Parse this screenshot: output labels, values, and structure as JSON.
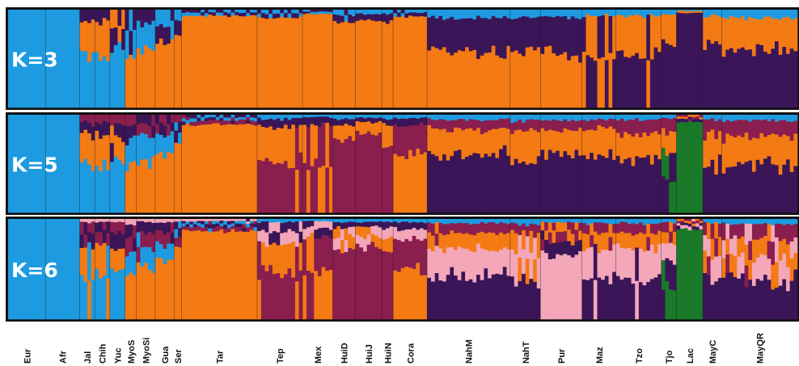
{
  "chart_data": {
    "type": "admixture-structure-bar",
    "populations": [
      {
        "label": "Eur",
        "cols": 10
      },
      {
        "label": "Afr",
        "cols": 9
      },
      {
        "label": "Jal",
        "cols": 4
      },
      {
        "label": "Chih",
        "cols": 4
      },
      {
        "label": "Yuc",
        "cols": 4
      },
      {
        "label": "MyoS",
        "cols": 3
      },
      {
        "label": "MyoSi",
        "cols": 5
      },
      {
        "label": "Gua",
        "cols": 5
      },
      {
        "label": "Ser",
        "cols": 2
      },
      {
        "label": "Tar",
        "cols": 20
      },
      {
        "label": "Tep",
        "cols": 12
      },
      {
        "label": "Mex",
        "cols": 8
      },
      {
        "label": "HuiD",
        "cols": 6
      },
      {
        "label": "HuiJ",
        "cols": 7
      },
      {
        "label": "HuiN",
        "cols": 3
      },
      {
        "label": "Cora",
        "cols": 9
      },
      {
        "label": "NahM",
        "cols": 22
      },
      {
        "label": "NahT",
        "cols": 8
      },
      {
        "label": "Pur",
        "cols": 11
      },
      {
        "label": "Maz",
        "cols": 9
      },
      {
        "label": "Tzo",
        "cols": 12
      },
      {
        "label": "Tjo",
        "cols": 4
      },
      {
        "label": "Lac",
        "cols": 7
      },
      {
        "label": "MayC",
        "cols": 5
      },
      {
        "label": "MayQR",
        "cols": 20
      }
    ],
    "panels": [
      {
        "label": "K=3",
        "colors": [
          "#1e9be0",
          "#f47a14",
          "#3a1557"
        ],
        "proportions": [
          [
            1,
            0,
            0
          ],
          [
            1,
            0,
            0
          ],
          [
            0.55,
            0.33,
            0.12
          ],
          [
            0.5,
            0.38,
            0.12
          ],
          [
            0.6,
            0.2,
            0.2
          ],
          [
            0.25,
            0.55,
            0.2
          ],
          [
            0.25,
            0.6,
            0.15
          ],
          [
            0.18,
            0.67,
            0.15
          ],
          [
            0.1,
            0.75,
            0.15
          ],
          [
            0.03,
            0.94,
            0.03
          ],
          [
            0.04,
            0.92,
            0.04
          ],
          [
            0.02,
            0.96,
            0.02
          ],
          [
            0.05,
            0.88,
            0.07
          ],
          [
            0.04,
            0.9,
            0.06
          ],
          [
            0.04,
            0.88,
            0.08
          ],
          [
            0.03,
            0.93,
            0.04
          ],
          [
            0.08,
            0.58,
            0.34
          ],
          [
            0.08,
            0.6,
            0.32
          ],
          [
            0.07,
            0.53,
            0.4
          ],
          [
            0.06,
            0.5,
            0.44
          ],
          [
            0.06,
            0.4,
            0.54
          ],
          [
            0.05,
            0.28,
            0.67
          ],
          [
            0.01,
            0.02,
            0.97
          ],
          [
            0.06,
            0.3,
            0.64
          ],
          [
            0.08,
            0.32,
            0.6
          ]
        ]
      },
      {
        "label": "K=5",
        "colors": [
          "#1e9be0",
          "#f47a14",
          "#3a1557",
          "#8a1e4e",
          "#1a7a2a"
        ],
        "proportions": [
          [
            1,
            0,
            0,
            0,
            0
          ],
          [
            1,
            0,
            0,
            0,
            0
          ],
          [
            0.5,
            0.3,
            0.12,
            0.08,
            0
          ],
          [
            0.45,
            0.35,
            0.12,
            0.08,
            0
          ],
          [
            0.55,
            0.2,
            0.15,
            0.1,
            0
          ],
          [
            0.25,
            0.5,
            0.15,
            0.1,
            0
          ],
          [
            0.25,
            0.55,
            0.1,
            0.1,
            0
          ],
          [
            0.18,
            0.62,
            0.1,
            0.1,
            0
          ],
          [
            0.1,
            0.72,
            0.1,
            0.08,
            0
          ],
          [
            0.03,
            0.9,
            0.03,
            0.04,
            0
          ],
          [
            0.04,
            0.38,
            0.08,
            0.5,
            0
          ],
          [
            0.02,
            0.45,
            0.08,
            0.45,
            0
          ],
          [
            0.04,
            0.15,
            0.06,
            0.75,
            0
          ],
          [
            0.03,
            0.12,
            0.05,
            0.8,
            0
          ],
          [
            0.04,
            0.2,
            0.06,
            0.7,
            0
          ],
          [
            0.03,
            0.6,
            0.07,
            0.3,
            0
          ],
          [
            0.05,
            0.25,
            0.6,
            0.1,
            0
          ],
          [
            0.06,
            0.3,
            0.54,
            0.1,
            0
          ],
          [
            0.05,
            0.25,
            0.6,
            0.1,
            0
          ],
          [
            0.05,
            0.28,
            0.57,
            0.1,
            0
          ],
          [
            0.05,
            0.25,
            0.55,
            0.15,
            0
          ],
          [
            0.04,
            0.18,
            0.35,
            0.13,
            0.3
          ],
          [
            0,
            0.02,
            0.03,
            0.02,
            0.93
          ],
          [
            0.05,
            0.3,
            0.5,
            0.15,
            0
          ],
          [
            0.06,
            0.3,
            0.48,
            0.16,
            0
          ]
        ]
      },
      {
        "label": "K=6",
        "colors": [
          "#1e9be0",
          "#f47a14",
          "#3a1557",
          "#8a1e4e",
          "#1a7a2a",
          "#f4a7b9"
        ],
        "proportions": [
          [
            1,
            0,
            0,
            0,
            0,
            0
          ],
          [
            1,
            0,
            0,
            0,
            0,
            0
          ],
          [
            0.45,
            0.3,
            0.12,
            0.1,
            0,
            0.03
          ],
          [
            0.42,
            0.33,
            0.12,
            0.1,
            0,
            0.03
          ],
          [
            0.5,
            0.2,
            0.15,
            0.12,
            0,
            0.03
          ],
          [
            0.2,
            0.45,
            0.15,
            0.15,
            0,
            0.05
          ],
          [
            0.2,
            0.5,
            0.12,
            0.15,
            0,
            0.03
          ],
          [
            0.15,
            0.6,
            0.1,
            0.12,
            0,
            0.03
          ],
          [
            0.08,
            0.72,
            0.08,
            0.1,
            0,
            0.02
          ],
          [
            0.03,
            0.88,
            0.03,
            0.04,
            0,
            0.02
          ],
          [
            0.03,
            0.3,
            0.1,
            0.45,
            0,
            0.12
          ],
          [
            0.02,
            0.4,
            0.08,
            0.42,
            0,
            0.08
          ],
          [
            0.03,
            0.12,
            0.05,
            0.7,
            0,
            0.1
          ],
          [
            0.03,
            0.1,
            0.05,
            0.72,
            0,
            0.1
          ],
          [
            0.03,
            0.15,
            0.06,
            0.66,
            0,
            0.1
          ],
          [
            0.03,
            0.5,
            0.07,
            0.3,
            0,
            0.1
          ],
          [
            0.04,
            0.15,
            0.45,
            0.1,
            0,
            0.26
          ],
          [
            0.05,
            0.2,
            0.4,
            0.1,
            0,
            0.25
          ],
          [
            0.03,
            0.1,
            0.12,
            0.1,
            0,
            0.65
          ],
          [
            0.04,
            0.15,
            0.4,
            0.1,
            0,
            0.31
          ],
          [
            0.04,
            0.15,
            0.4,
            0.1,
            0,
            0.31
          ],
          [
            0.03,
            0.1,
            0.3,
            0.1,
            0.3,
            0.17
          ],
          [
            0,
            0.02,
            0.03,
            0.02,
            0.9,
            0.03
          ],
          [
            0.04,
            0.2,
            0.4,
            0.15,
            0,
            0.21
          ],
          [
            0.05,
            0.2,
            0.38,
            0.17,
            0,
            0.2
          ]
        ]
      }
    ]
  }
}
